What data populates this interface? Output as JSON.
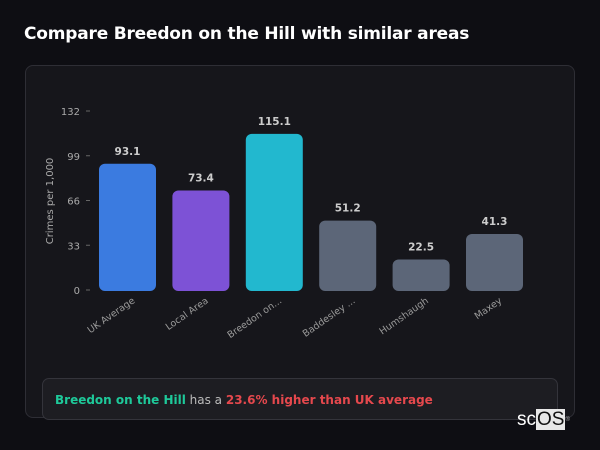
{
  "title": "Compare Breedon on the Hill with similar areas",
  "chart_data": {
    "type": "bar",
    "categories": [
      "UK Average",
      "Local Area",
      "Breedon on...",
      "Baddesley ...",
      "Humshaugh",
      "Maxey"
    ],
    "values": [
      93.1,
      73.4,
      115.1,
      51.2,
      22.5,
      41.3
    ],
    "data_labels": [
      "93.1",
      "73.4",
      "115.1",
      "51.2",
      "22.5",
      "41.3"
    ],
    "colors": [
      "#3b7be0",
      "#7d52d6",
      "#22b8cf",
      "#5c6678",
      "#5c6678",
      "#5c6678"
    ],
    "ylabel": "Crimes per 1,000",
    "xlabel": "",
    "ylim": [
      0,
      132
    ],
    "yticks": [
      "0",
      "33",
      "66",
      "99",
      "132"
    ],
    "grid": false,
    "legend": "none"
  },
  "callout": {
    "area": "Breedon on the Hill",
    "middle": " has a ",
    "comparison": "23.6% higher than UK average"
  },
  "logo": {
    "text_sc": "sc",
    "text_os": "OS",
    "mark": "®"
  }
}
